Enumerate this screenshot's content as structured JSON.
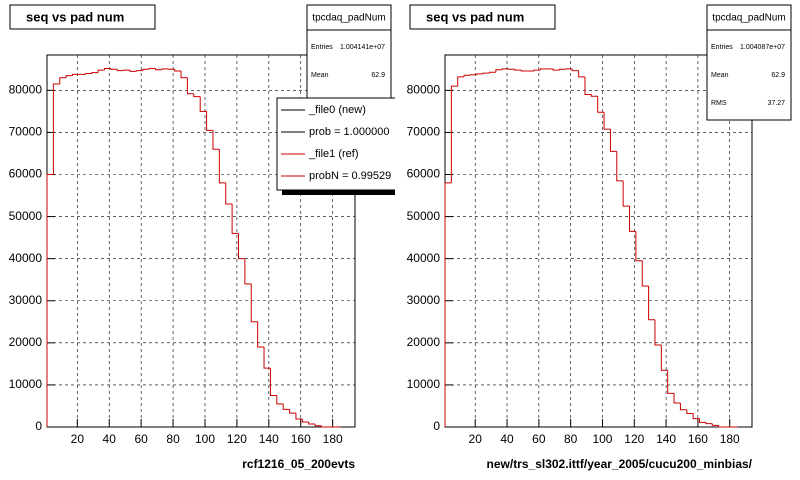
{
  "chart_data": [
    {
      "type": "histogram",
      "title": "seq vs pad num",
      "xlabel": "rcf1216_05_200evts",
      "stats": {
        "name": "tpcdaq_padNum",
        "entries_label": "Entries",
        "entries": "1.004141e+07",
        "mean_label": "Mean",
        "mean": 62.9
      },
      "legend": [
        {
          "label": "_file0 (new)",
          "color": "#000000"
        },
        {
          "label": "prob = 1.000000",
          "color": "#000000"
        },
        {
          "label": "_file1 (ref)",
          "color": "#cc0000"
        },
        {
          "label": "probN = 0.99529",
          "color": "#cc0000"
        }
      ],
      "color": "#cc0000",
      "bins": [
        1,
        5,
        9,
        13,
        17,
        21,
        25,
        29,
        33,
        37,
        41,
        45,
        49,
        53,
        57,
        61,
        65,
        69,
        73,
        77,
        81,
        85,
        89,
        93,
        97,
        101,
        105,
        109,
        113,
        117,
        121,
        125,
        129,
        133,
        137,
        141,
        145,
        149,
        153,
        157,
        161,
        165,
        169,
        173,
        177,
        181,
        185
      ],
      "values": [
        60000,
        81500,
        83000,
        83500,
        83800,
        83800,
        84000,
        84200,
        84800,
        85200,
        85000,
        84700,
        84800,
        84500,
        84700,
        85000,
        85200,
        84900,
        85100,
        85000,
        84600,
        83000,
        79200,
        78500,
        75000,
        70500,
        66000,
        58000,
        53000,
        46000,
        40000,
        34000,
        25000,
        19000,
        14000,
        7500,
        5500,
        4200,
        3300,
        1900,
        1200,
        700,
        300,
        0,
        0,
        0
      ],
      "xlim": [
        1,
        194
      ],
      "ylim": [
        0,
        88400
      ],
      "xticks": [
        20,
        40,
        60,
        80,
        100,
        120,
        140,
        160,
        180
      ],
      "yticks": [
        0,
        10000,
        20000,
        30000,
        40000,
        50000,
        60000,
        70000,
        80000
      ],
      "grid": true
    },
    {
      "type": "histogram",
      "title": "seq vs pad num",
      "xlabel": "new/trs_sl302.ittf/year_2005/cucu200_minbias/",
      "stats": {
        "name": "tpcdaq_padNum",
        "entries_label": "Entries",
        "entries": "1.004087e+07",
        "mean_label": "Mean",
        "mean": 62.9,
        "rms_label": "RMS",
        "rms": 37.27
      },
      "color": "#cc0000",
      "bins": [
        1,
        5,
        9,
        13,
        17,
        21,
        25,
        29,
        33,
        37,
        41,
        45,
        49,
        53,
        57,
        61,
        65,
        69,
        73,
        77,
        81,
        85,
        89,
        93,
        97,
        101,
        105,
        109,
        113,
        117,
        121,
        125,
        129,
        133,
        137,
        141,
        145,
        149,
        153,
        157,
        161,
        165,
        169,
        173,
        177,
        181,
        185
      ],
      "values": [
        58000,
        81000,
        83200,
        83600,
        83700,
        83900,
        84100,
        84300,
        84900,
        85100,
        85000,
        84800,
        84600,
        84600,
        84800,
        85100,
        85100,
        84800,
        85000,
        85100,
        84700,
        83200,
        79000,
        78600,
        74800,
        70800,
        65500,
        58500,
        52500,
        46500,
        39500,
        33500,
        25500,
        19500,
        13500,
        8000,
        5700,
        4100,
        3200,
        2000,
        1100,
        800,
        400,
        0,
        0,
        0
      ],
      "xlim": [
        1,
        194
      ],
      "ylim": [
        0,
        88400
      ],
      "xticks": [
        20,
        40,
        60,
        80,
        100,
        120,
        140,
        160,
        180
      ],
      "yticks": [
        0,
        10000,
        20000,
        30000,
        40000,
        50000,
        60000,
        70000,
        80000
      ],
      "grid": true
    }
  ]
}
